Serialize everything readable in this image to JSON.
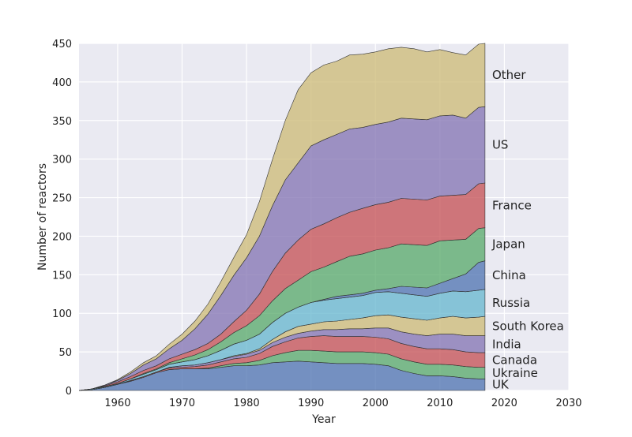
{
  "chart_data": {
    "type": "area",
    "stacked": true,
    "title": "",
    "xlabel": "Year",
    "ylabel": "Number of reactors",
    "xlim": [
      1954,
      2030
    ],
    "ylim": [
      0,
      450
    ],
    "xticks": [
      1960,
      1970,
      1980,
      1990,
      2000,
      2010,
      2020,
      2030
    ],
    "yticks": [
      0,
      50,
      100,
      150,
      200,
      250,
      300,
      350,
      400,
      450
    ],
    "grid": true,
    "legend": "labels at right end of each band",
    "x": [
      1954,
      1956,
      1958,
      1960,
      1962,
      1964,
      1966,
      1968,
      1970,
      1972,
      1974,
      1976,
      1978,
      1980,
      1982,
      1984,
      1986,
      1988,
      1990,
      1992,
      1994,
      1996,
      1998,
      2000,
      2002,
      2004,
      2006,
      2008,
      2010,
      2012,
      2014,
      2016,
      2017
    ],
    "series": [
      {
        "name": "UK",
        "color": "#4c72b0",
        "values": [
          0,
          1,
          4,
          8,
          12,
          17,
          23,
          27,
          28,
          28,
          28,
          30,
          32,
          32,
          33,
          36,
          37,
          38,
          37,
          36,
          35,
          35,
          35,
          34,
          32,
          26,
          22,
          19,
          19,
          18,
          16,
          15,
          15
        ]
      },
      {
        "name": "Ukraine",
        "color": "#55a868",
        "values": [
          0,
          0,
          0,
          0,
          0,
          0,
          0,
          0,
          0,
          0,
          1,
          2,
          3,
          4,
          6,
          9,
          12,
          14,
          15,
          15,
          15,
          15,
          15,
          15,
          15,
          15,
          15,
          15,
          15,
          15,
          15,
          15,
          15
        ]
      },
      {
        "name": "Canada",
        "color": "#c44e52",
        "values": [
          0,
          0,
          0,
          0,
          1,
          1,
          1,
          2,
          2,
          3,
          4,
          5,
          6,
          7,
          9,
          12,
          14,
          16,
          18,
          20,
          20,
          20,
          20,
          20,
          20,
          20,
          20,
          20,
          20,
          20,
          19,
          19,
          19
        ]
      },
      {
        "name": "India",
        "color": "#8172b2",
        "values": [
          0,
          0,
          0,
          0,
          0,
          0,
          0,
          1,
          2,
          2,
          3,
          3,
          3,
          4,
          4,
          5,
          6,
          6,
          7,
          8,
          9,
          10,
          10,
          12,
          14,
          15,
          16,
          17,
          19,
          20,
          21,
          22,
          22
        ]
      },
      {
        "name": "South Korea",
        "color": "#ccb974",
        "values": [
          0,
          0,
          0,
          0,
          0,
          0,
          0,
          0,
          0,
          0,
          0,
          0,
          1,
          1,
          2,
          4,
          7,
          9,
          9,
          10,
          11,
          12,
          14,
          16,
          17,
          19,
          20,
          20,
          21,
          23,
          23,
          24,
          25
        ]
      },
      {
        "name": "Russia",
        "color": "#64b5cd",
        "values": [
          0,
          1,
          1,
          1,
          2,
          3,
          3,
          4,
          5,
          7,
          9,
          12,
          15,
          17,
          19,
          22,
          24,
          25,
          28,
          28,
          29,
          29,
          29,
          30,
          30,
          31,
          31,
          31,
          32,
          33,
          34,
          35,
          35
        ]
      },
      {
        "name": "China",
        "color": "#4c72b0",
        "values": [
          0,
          0,
          0,
          0,
          0,
          0,
          0,
          0,
          0,
          0,
          0,
          0,
          0,
          0,
          0,
          0,
          0,
          0,
          0,
          1,
          3,
          3,
          3,
          3,
          4,
          9,
          10,
          11,
          13,
          16,
          23,
          36,
          37
        ]
      },
      {
        "name": "Japan",
        "color": "#55a868",
        "values": [
          0,
          0,
          0,
          0,
          0,
          1,
          1,
          2,
          4,
          6,
          8,
          11,
          15,
          19,
          24,
          28,
          32,
          35,
          40,
          42,
          45,
          50,
          51,
          52,
          53,
          55,
          55,
          55,
          55,
          50,
          45,
          44,
          43
        ]
      },
      {
        "name": "France",
        "color": "#c44e52",
        "values": [
          0,
          0,
          1,
          2,
          3,
          4,
          4,
          5,
          6,
          7,
          8,
          10,
          14,
          20,
          28,
          38,
          46,
          52,
          55,
          56,
          57,
          57,
          59,
          59,
          59,
          59,
          59,
          59,
          58,
          58,
          58,
          58,
          58
        ]
      },
      {
        "name": "US",
        "color": "#8172b2",
        "values": [
          0,
          0,
          1,
          2,
          4,
          7,
          9,
          13,
          18,
          27,
          38,
          50,
          60,
          68,
          75,
          85,
          95,
          100,
          108,
          109,
          108,
          108,
          105,
          104,
          104,
          104,
          104,
          104,
          104,
          104,
          99,
          99,
          99
        ]
      },
      {
        "name": "Other",
        "color": "#ccb974",
        "values": [
          0,
          0,
          0,
          1,
          2,
          3,
          4,
          6,
          8,
          10,
          13,
          18,
          23,
          30,
          45,
          60,
          77,
          95,
          95,
          97,
          95,
          96,
          95,
          94,
          95,
          92,
          91,
          88,
          86,
          81,
          82,
          82,
          82
        ]
      }
    ]
  }
}
